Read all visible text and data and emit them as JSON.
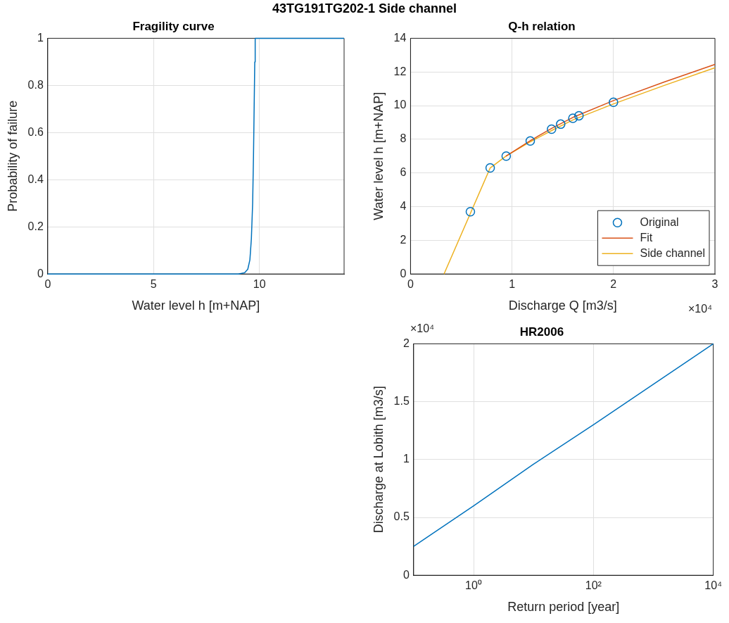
{
  "chart_data": [
    {
      "type": "line",
      "title": "Fragility curve",
      "xlabel": "Water level h [m+NAP]",
      "ylabel": "Probability of failure",
      "annotations": [
        "43TG191TG202-1 Side channel"
      ],
      "xlim": [
        0,
        14
      ],
      "ylim": [
        0,
        1
      ],
      "xticks": [
        0,
        5,
        10
      ],
      "yticks": [
        0,
        0.2,
        0.4,
        0.6,
        0.8,
        1
      ],
      "grid": true,
      "legend": false,
      "series": [
        {
          "color": "#0072bd",
          "x": [
            0,
            9.0,
            9.3,
            9.45,
            9.55,
            9.62,
            9.68,
            9.72,
            9.75,
            9.78,
            9.8,
            14
          ],
          "values": [
            0,
            0,
            0.005,
            0.02,
            0.06,
            0.15,
            0.3,
            0.5,
            0.7,
            0.9,
            1,
            1
          ]
        }
      ]
    },
    {
      "type": "line",
      "title": "Q-h relation",
      "xlabel": "Discharge Q [m3/s]",
      "ylabel": "Water level h [m+NAP]",
      "annotations": [
        "×10⁴"
      ],
      "xlim": [
        0,
        3
      ],
      "ylim": [
        0,
        14
      ],
      "xticks": [
        0,
        1,
        2,
        3
      ],
      "yticks": [
        0,
        2,
        4,
        6,
        8,
        10,
        12,
        14
      ],
      "grid": true,
      "legend": "bottom right",
      "series": [
        {
          "name": "Original",
          "type": "scatter",
          "marker": "circle",
          "color": "#0072bd",
          "x": [
            0.59,
            0.785,
            0.943,
            1.18,
            1.39,
            1.48,
            1.6,
            1.66,
            2.0
          ],
          "values": [
            3.7,
            6.3,
            7.0,
            7.9,
            8.6,
            8.9,
            9.25,
            9.4,
            10.2
          ]
        },
        {
          "name": "Fit",
          "color": "#d95319",
          "x": [
            0.94,
            1.18,
            1.4,
            1.6,
            2.0,
            2.5,
            3.0
          ],
          "values": [
            7.0,
            7.92,
            8.68,
            9.3,
            10.3,
            11.4,
            12.45
          ]
        },
        {
          "name": "Side channel",
          "color": "#edb120",
          "x": [
            0.33,
            0.785,
            0.94,
            1.18,
            1.4,
            1.6,
            2.0,
            2.5,
            3.0
          ],
          "values": [
            0,
            6.3,
            7.0,
            7.85,
            8.55,
            9.15,
            10.1,
            11.2,
            12.25
          ]
        }
      ]
    },
    {
      "type": "line",
      "title": "HR2006",
      "xlabel": "Return period [year]",
      "ylabel": "Discharge at Lobith [m3/s]",
      "annotations": [
        "×10⁴"
      ],
      "log": "x",
      "xlim": [
        0.1,
        10000
      ],
      "ylim": [
        0,
        2
      ],
      "xticks": [
        {
          "value": 1,
          "label": "10⁰"
        },
        {
          "value": 100,
          "label": "10²"
        },
        {
          "value": 10000,
          "label": "10⁴"
        }
      ],
      "yticks": [
        0,
        0.5,
        1,
        1.5,
        2
      ],
      "grid": true,
      "legend": false,
      "series": [
        {
          "color": "#0072bd",
          "x": [
            0.1,
            1,
            10,
            100,
            1000,
            10000
          ],
          "values": [
            0.25,
            0.6,
            0.96,
            1.3,
            1.65,
            2.0
          ]
        }
      ]
    }
  ]
}
